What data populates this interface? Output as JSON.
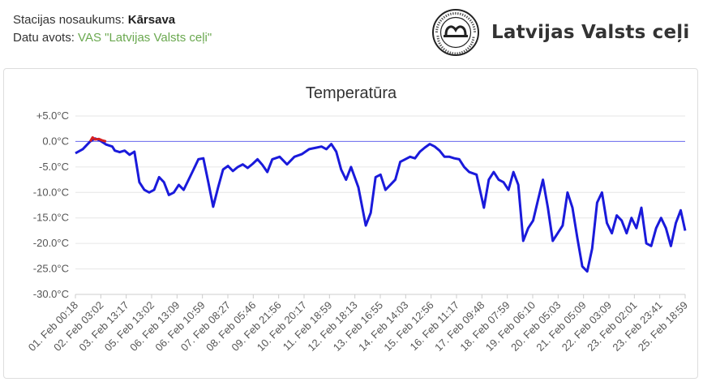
{
  "station": {
    "name_label": "Stacijas nosaukums:",
    "name_value": "Kārsava",
    "source_label": "Datu avots:",
    "source_value": "VAS \"Latvijas Valsts ceļi\""
  },
  "logo": {
    "text": "Latvijas Valsts ceļi",
    "seal_text": "LATVIJAS VALSTS CEĻI"
  },
  "colors": {
    "series": "#1a1adb",
    "above_zero": "#d62020",
    "zero_line": "#6b6bf0",
    "grid": "#e6e6e6",
    "link": "#6aa84f"
  },
  "chart_data": {
    "type": "line",
    "title": "Temperatūra",
    "xlabel": "",
    "ylabel": "",
    "ylim": [
      -30,
      5
    ],
    "y_ticks": [
      5,
      0,
      -5,
      -10,
      -15,
      -20,
      -25,
      -30
    ],
    "y_tick_labels": [
      "+5.0°C",
      "0.0°C",
      "-5.0°C",
      "-10.0°C",
      "-15.0°C",
      "-20.0°C",
      "-25.0°C",
      "-30.0°C"
    ],
    "x_tick_labels": [
      "01. Feb 00:18",
      "02. Feb 03:02",
      "03. Feb 13:17",
      "05. Feb 13:02",
      "06. Feb 13:09",
      "06. Feb 10:59",
      "07. Feb 08:27",
      "08. Feb 05:46",
      "09. Feb 21:56",
      "10. Feb 20:17",
      "11. Feb 18:59",
      "12. Feb 18:13",
      "13. Feb 16:55",
      "14. Feb 14:03",
      "15. Feb 12:56",
      "16. Feb 11:17",
      "17. Feb 09:48",
      "18. Feb 07:59",
      "19. Feb 06:10",
      "20. Feb 05:03",
      "21. Feb 05:09",
      "22. Feb 03:09",
      "23. Feb 02:01",
      "23. Feb 23:41",
      "25. Feb 18:59"
    ],
    "x_range_days": [
      0,
      24.78
    ],
    "grid": true,
    "zero_line": true,
    "legend": "none",
    "series": [
      {
        "color": "#1a1adb",
        "x": [
          0.0,
          0.3,
          0.6,
          0.8,
          1.0,
          1.25,
          1.5,
          1.6,
          1.8,
          2.0,
          2.2,
          2.4,
          2.6,
          2.8,
          3.0,
          3.2,
          3.4,
          3.6,
          3.8,
          4.0,
          4.2,
          4.4,
          4.6,
          4.8,
          5.0,
          5.2,
          5.4,
          5.6,
          5.8,
          6.0,
          6.2,
          6.4,
          6.6,
          6.8,
          7.0,
          7.2,
          7.4,
          7.6,
          7.8,
          8.0,
          8.3,
          8.6,
          8.9,
          9.2,
          9.5,
          9.8,
          10.0,
          10.2,
          10.4,
          10.6,
          10.8,
          11.0,
          11.2,
          11.5,
          11.8,
          12.0,
          12.2,
          12.4,
          12.6,
          12.8,
          13.0,
          13.2,
          13.4,
          13.6,
          13.8,
          14.0,
          14.2,
          14.4,
          14.6,
          14.8,
          15.0,
          15.2,
          15.4,
          15.6,
          15.8,
          16.0,
          16.3,
          16.6,
          16.8,
          17.0,
          17.2,
          17.4,
          17.6,
          17.8,
          18.0,
          18.2,
          18.4,
          18.6,
          18.8,
          19.0,
          19.2,
          19.4,
          19.6,
          19.8,
          20.0,
          20.2,
          20.4,
          20.6,
          20.8,
          21.0,
          21.2,
          21.4,
          21.6,
          21.8,
          22.0,
          22.2,
          22.4,
          22.6,
          22.8,
          23.0,
          23.2,
          23.4,
          23.6,
          23.8,
          24.0,
          24.2,
          24.4,
          24.6,
          24.78
        ],
        "y": [
          -2.3,
          -1.5,
          0.0,
          0.6,
          0.2,
          -0.6,
          -1.0,
          -1.8,
          -2.1,
          -1.8,
          -2.6,
          -2.0,
          -8.0,
          -9.5,
          -10.0,
          -9.5,
          -7.0,
          -8.0,
          -10.5,
          -10.0,
          -8.5,
          -9.5,
          -7.5,
          -5.5,
          -3.5,
          -3.3,
          -8.0,
          -12.8,
          -9.0,
          -5.5,
          -4.8,
          -5.8,
          -5.0,
          -4.5,
          -5.2,
          -4.4,
          -3.5,
          -4.6,
          -6.0,
          -3.5,
          -3.0,
          -4.5,
          -3.0,
          -2.5,
          -1.5,
          -1.2,
          -1.0,
          -1.5,
          -0.5,
          -2.0,
          -5.5,
          -7.5,
          -5.0,
          -9.0,
          -16.5,
          -14.0,
          -7.0,
          -6.5,
          -9.5,
          -8.5,
          -7.5,
          -4.0,
          -3.5,
          -3.0,
          -3.3,
          -2.0,
          -1.2,
          -0.5,
          -1.0,
          -1.8,
          -3.0,
          -3.0,
          -3.3,
          -3.5,
          -5.0,
          -6.0,
          -6.5,
          -13.0,
          -7.5,
          -6.0,
          -7.5,
          -8.0,
          -9.5,
          -6.0,
          -8.5,
          -19.5,
          -17.0,
          -15.5,
          -11.5,
          -7.5,
          -13.0,
          -19.5,
          -18.0,
          -16.5,
          -10.0,
          -13.0,
          -19.0,
          -24.5,
          -25.5,
          -21.0,
          -12.0,
          -10.0,
          -16.0,
          -18.0,
          -14.5,
          -15.5,
          -18.0,
          -15.0,
          -17.0,
          -13.0,
          -20.0,
          -20.5,
          -17.0,
          -15.0,
          -17.0,
          -20.5,
          -16.0,
          -13.5,
          -17.5
        ]
      }
    ],
    "above_zero_segment": {
      "color": "#d62020",
      "x": [
        0.6,
        0.7,
        0.8,
        0.95,
        1.1,
        1.25
      ],
      "y": [
        0.0,
        0.8,
        0.4,
        0.5,
        0.2,
        0.0
      ]
    }
  }
}
